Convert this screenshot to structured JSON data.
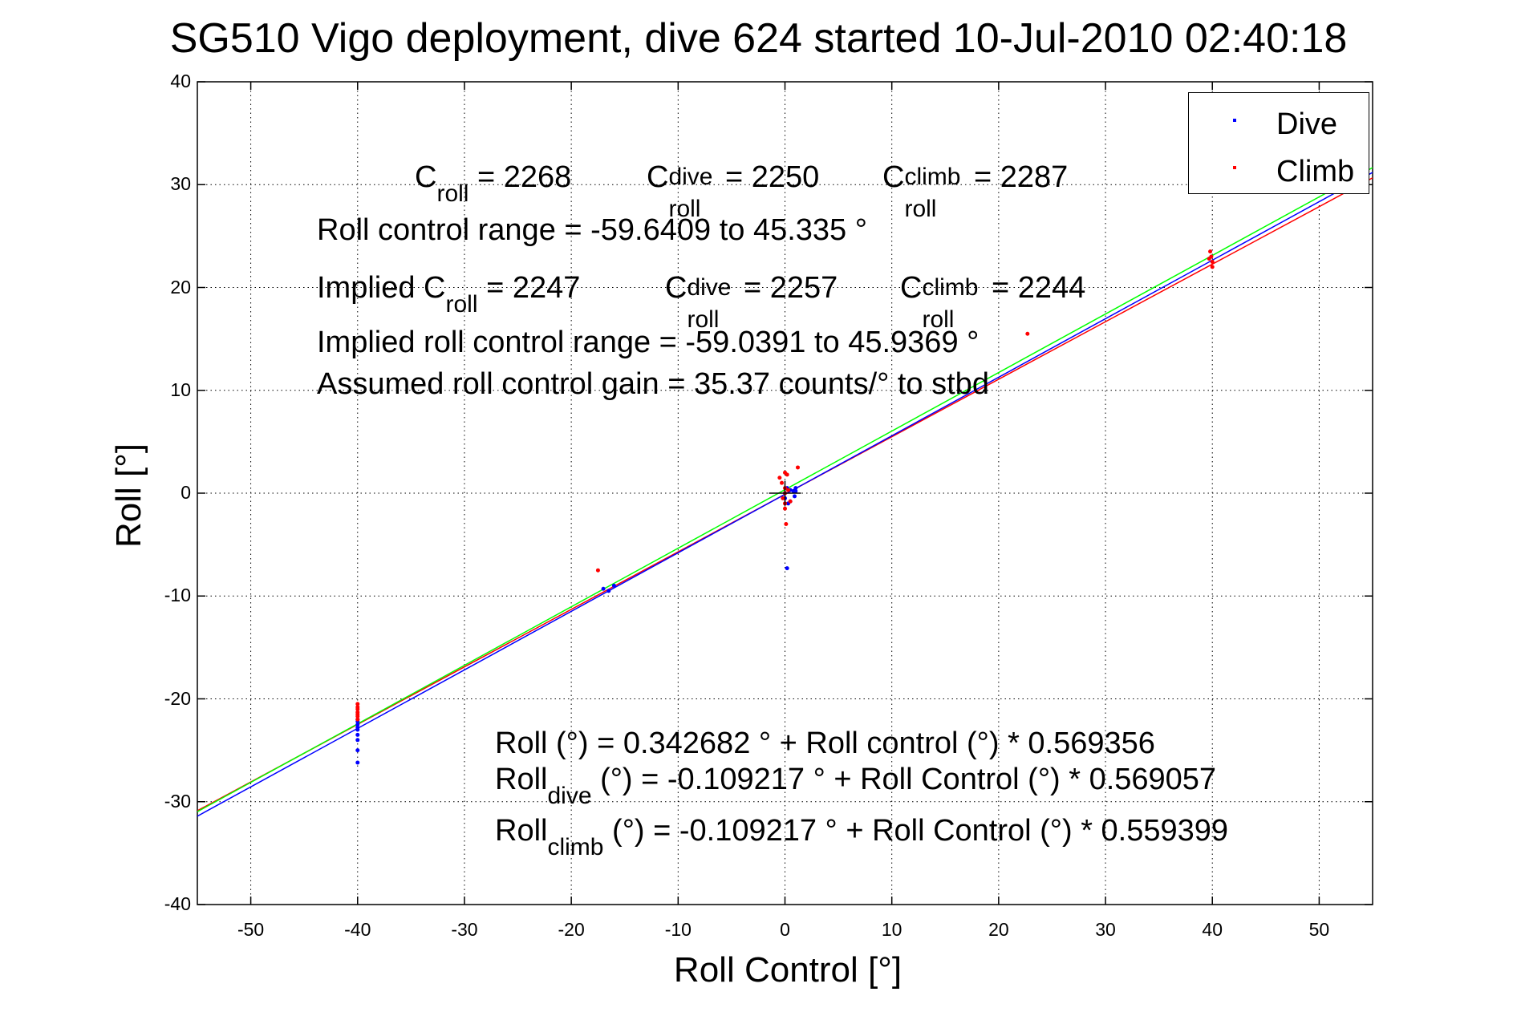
{
  "chart_data": {
    "type": "scatter",
    "title": "SG510 Vigo deployment, dive 624 started 10-Jul-2010 02:40:18",
    "xlabel": "Roll Control [°]",
    "ylabel": "Roll [°]",
    "xlim": [
      -55,
      55
    ],
    "ylim": [
      -40,
      40
    ],
    "xticks": [
      -50,
      -40,
      -30,
      -20,
      -10,
      0,
      10,
      20,
      30,
      40,
      50
    ],
    "yticks": [
      -40,
      -30,
      -20,
      -10,
      0,
      10,
      20,
      30,
      40
    ],
    "grid": true,
    "legend": {
      "placement": "top-right",
      "entries": [
        "Dive",
        "Climb"
      ]
    },
    "series": [
      {
        "name": "Dive",
        "color": "#0000ff",
        "marker": "dot",
        "x": [
          -40,
          -40,
          -40,
          -40,
          -40,
          -40,
          -40,
          -40,
          -40,
          -17,
          -16.5,
          -16,
          0,
          0,
          0.2,
          0.3,
          0.5,
          0.5,
          0.8,
          0.9,
          1,
          1,
          0.2
        ],
        "y": [
          -22,
          -22.5,
          -23,
          -23.5,
          -22.2,
          -24,
          -25,
          -26.2,
          -22.8,
          -9.3,
          -9.5,
          -9,
          0,
          -0.5,
          0.5,
          -1,
          0.3,
          -0.8,
          0.2,
          -0.3,
          0.5,
          0.2,
          -7.3
        ]
      },
      {
        "name": "Climb",
        "color": "#ff0000",
        "marker": "dot",
        "x": [
          -40,
          -40,
          -40,
          -40,
          -40,
          -40,
          -40,
          -17.5,
          -0.5,
          -0.3,
          0,
          0,
          0,
          0.2,
          0.3,
          0,
          -0.2,
          0.5,
          1.2,
          0.1,
          0,
          39.8,
          39.9,
          40,
          39.7,
          40,
          22.7
        ],
        "y": [
          -20.5,
          -21,
          -21.3,
          -21.7,
          -22,
          -21.5,
          -20.8,
          -7.5,
          1.5,
          1,
          0.5,
          0,
          2,
          1.8,
          0.3,
          -1,
          -0.5,
          -0.8,
          2.5,
          -3,
          -1.5,
          23.5,
          23,
          22.5,
          22.8,
          22,
          15.5
        ]
      }
    ],
    "fit_lines": [
      {
        "name": "Overall fit",
        "color": "#00ff00",
        "intercept": 0.342682,
        "slope": 0.569356
      },
      {
        "name": "Dive fit",
        "color": "#0000ff",
        "intercept": -0.109217,
        "slope": 0.569057
      },
      {
        "name": "Climb fit",
        "color": "#ff0000",
        "intercept": -0.109217,
        "slope": 0.559399
      }
    ],
    "annotations": {
      "croll": {
        "base": "C",
        "sub": "roll",
        "rest": " = 2268"
      },
      "croll_dive": {
        "base": "C",
        "sup": "dive",
        "sub": "roll",
        "rest": " = 2250"
      },
      "croll_climb": {
        "base": "C",
        "sup": "climb",
        "sub": "roll",
        "rest": " = 2287"
      },
      "range": "Roll control range = -59.6409 to 45.335 °",
      "implied_pre": "Implied C",
      "implied_sub": "roll",
      "implied_rest": " = 2247",
      "implied_dive": {
        "base": "C",
        "sup": "dive",
        "sub": "roll",
        "rest": " = 2257"
      },
      "implied_climb": {
        "base": "C",
        "sup": "climb",
        "sub": "roll",
        "rest": " = 2244"
      },
      "implied_range": "Implied roll control range = -59.0391 to 45.9369 °",
      "gain": "Assumed roll control gain = 35.37 counts/° to stbd",
      "eq_all": "Roll (°) = 0.342682 ° + Roll control (°) * 0.569356",
      "eq_dive_base": "Roll",
      "eq_dive_sub": "dive",
      "eq_dive_rest": " (°) = -0.109217 ° + Roll Control (°) * 0.569057",
      "eq_climb_base": "Roll",
      "eq_climb_sub": "climb",
      "eq_climb_rest": " (°) = -0.109217 ° + Roll Control (°) * 0.559399"
    }
  }
}
